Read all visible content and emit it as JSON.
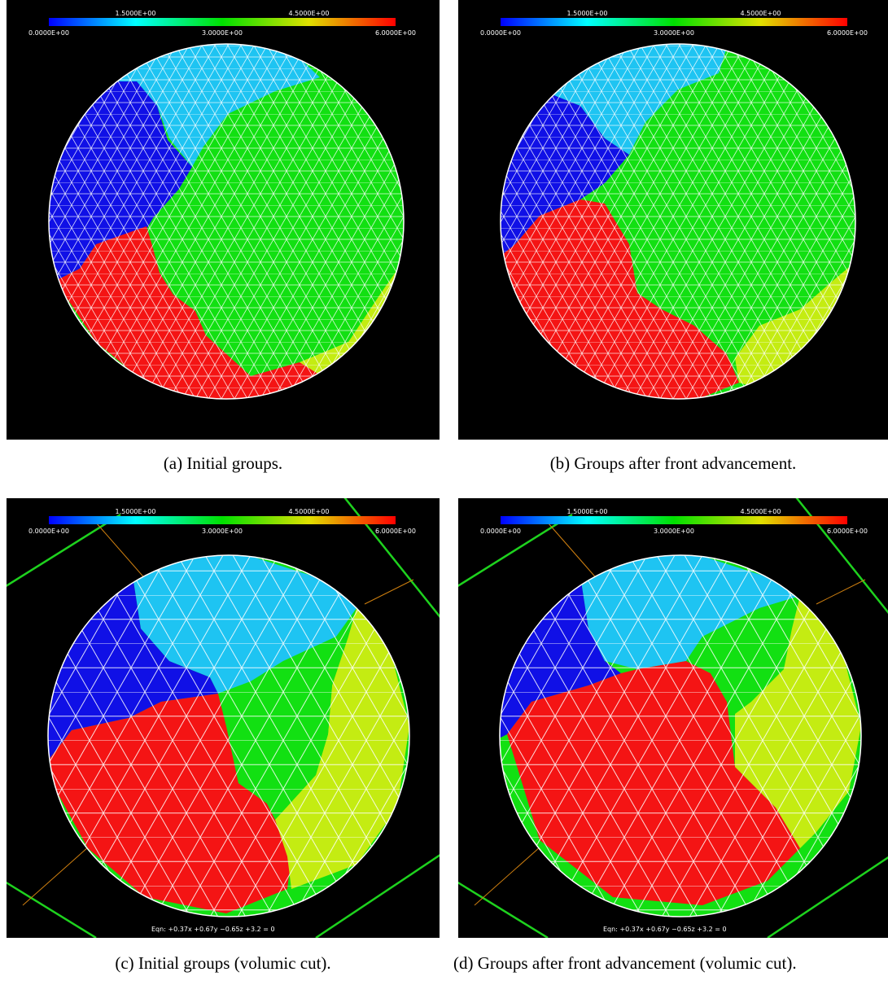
{
  "colorbar": {
    "ticks": [
      "0.0000E+00",
      "1.5000E+00",
      "3.0000E+00",
      "4.5000E+00",
      "6.0000E+00"
    ]
  },
  "panels": [
    {
      "caption": "(a) Initial groups."
    },
    {
      "caption": "(b) Groups after front advancement."
    },
    {
      "caption": "(c) Initial groups (volumic cut).",
      "equation": "Eqn:  +0.37x +0.67y −0.65z +3.2 = 0"
    },
    {
      "caption": "(d) Groups after front advancement (volumic cut).",
      "equation": "Eqn:  +0.37x +0.67y −0.65z +3.2 = 0"
    }
  ]
}
